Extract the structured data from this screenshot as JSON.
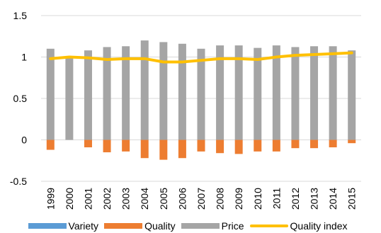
{
  "chart_data": {
    "type": "bar",
    "categories": [
      "1999",
      "2000",
      "2001",
      "2002",
      "2003",
      "2004",
      "2005",
      "2006",
      "2007",
      "2008",
      "2009",
      "2010",
      "2011",
      "2012",
      "2013",
      "2014",
      "2015"
    ],
    "series": [
      {
        "name": "Variety",
        "type": "bar",
        "color": "#5B9BD5",
        "values": [
          0,
          0,
          0,
          0,
          0,
          0,
          0,
          0,
          0,
          0,
          0,
          0,
          0,
          0,
          0,
          0,
          0
        ]
      },
      {
        "name": "Quality",
        "type": "bar",
        "color": "#ED7D31",
        "values": [
          -0.12,
          0,
          -0.09,
          -0.15,
          -0.14,
          -0.22,
          -0.24,
          -0.22,
          -0.14,
          -0.16,
          -0.17,
          -0.14,
          -0.14,
          -0.1,
          -0.1,
          -0.09,
          -0.04
        ]
      },
      {
        "name": "Price",
        "type": "bar",
        "color": "#A5A5A5",
        "values": [
          1.1,
          1.0,
          1.08,
          1.12,
          1.13,
          1.2,
          1.18,
          1.16,
          1.1,
          1.14,
          1.14,
          1.11,
          1.14,
          1.12,
          1.13,
          1.13,
          1.08
        ]
      },
      {
        "name": "Quality index",
        "type": "line",
        "color": "#FFC000",
        "values": [
          0.98,
          1.0,
          0.99,
          0.97,
          0.98,
          0.98,
          0.94,
          0.94,
          0.96,
          0.98,
          0.98,
          0.97,
          1.0,
          1.02,
          1.03,
          1.04,
          1.05
        ]
      }
    ],
    "ylim": [
      -0.5,
      1.5
    ],
    "yticks": [
      "1.5",
      "1",
      "0.5",
      "0",
      "-0.5"
    ],
    "ytick_values": [
      1.5,
      1,
      0.5,
      0,
      -0.5
    ],
    "grid": true,
    "legend_position": "bottom",
    "gridline_color": "#D9D9D9"
  }
}
